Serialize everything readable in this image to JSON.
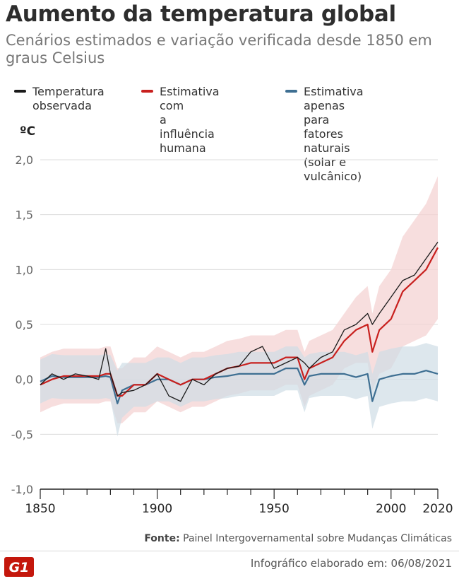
{
  "header": {
    "title": "Aumento da temperatura global",
    "subtitle": "Cenários estimados e variação verificada desde 1850 em graus Celsius"
  },
  "legend": [
    {
      "label": "Temperatura\nobservada",
      "color": "#1a1a1a"
    },
    {
      "label": "Estimativa com\na influência\nhumana",
      "color": "#c8201e"
    },
    {
      "label": "Estimativa apenas\npara fatores naturais\n(solar e vulcânico)",
      "color": "#3e6f92"
    }
  ],
  "footer": {
    "source_label": "Fonte:",
    "source_text": "Painel Intergovernamental sobre Mudanças Climáticas",
    "credit": "Infográfico elaborado em: 06/08/2021",
    "logo_text": "G1"
  },
  "colors": {
    "observed": "#1a1a1a",
    "human": "#c8201e",
    "human_band": "#f4d3d3",
    "natural": "#3e6f92",
    "natural_band": "#cfdde6",
    "brand": "#c4170c"
  },
  "chart_data": {
    "type": "line",
    "unit_label": "ºC",
    "ylim": [
      -1.0,
      2.0
    ],
    "xlim": [
      1850,
      2020
    ],
    "yticks": [
      2.0,
      1.5,
      1.0,
      0.5,
      0.0,
      -0.5,
      -1.0
    ],
    "ytick_labels": [
      "2,0",
      "1,5",
      "1,0",
      "0,5",
      "0,0",
      "-0,5",
      "-1,0"
    ],
    "xticks": [
      1850,
      1900,
      1950,
      2000,
      2020
    ],
    "xtick_labels": [
      "1850",
      "1900",
      "1950",
      "2000",
      "2020"
    ],
    "grid": "horizontal",
    "x": [
      1850,
      1855,
      1860,
      1865,
      1870,
      1875,
      1878,
      1880,
      1883,
      1885,
      1890,
      1895,
      1900,
      1905,
      1910,
      1915,
      1920,
      1925,
      1930,
      1935,
      1940,
      1945,
      1950,
      1955,
      1960,
      1963,
      1965,
      1970,
      1975,
      1980,
      1985,
      1990,
      1992,
      1995,
      2000,
      2005,
      2010,
      2015,
      2020
    ],
    "series": [
      {
        "name": "Temperatura observada",
        "values": [
          -0.05,
          0.05,
          0.0,
          0.05,
          0.03,
          0.0,
          0.28,
          0.05,
          -0.15,
          -0.12,
          -0.1,
          -0.05,
          0.05,
          -0.15,
          -0.2,
          0.0,
          -0.05,
          0.05,
          0.1,
          0.12,
          0.25,
          0.3,
          0.1,
          0.15,
          0.2,
          0.15,
          0.1,
          0.2,
          0.25,
          0.45,
          0.5,
          0.6,
          0.5,
          0.6,
          0.75,
          0.9,
          0.95,
          1.1,
          1.25
        ]
      },
      {
        "name": "Estimativa com a influência humana",
        "values": [
          -0.05,
          0.0,
          0.03,
          0.03,
          0.03,
          0.03,
          0.05,
          0.05,
          -0.15,
          -0.15,
          -0.05,
          -0.05,
          0.05,
          0.0,
          -0.05,
          0.0,
          0.0,
          0.05,
          0.1,
          0.12,
          0.15,
          0.15,
          0.15,
          0.2,
          0.2,
          0.0,
          0.1,
          0.15,
          0.2,
          0.35,
          0.45,
          0.5,
          0.25,
          0.45,
          0.55,
          0.8,
          0.9,
          1.0,
          1.2
        ],
        "band_width": [
          0.25,
          0.25,
          0.25,
          0.25,
          0.25,
          0.25,
          0.25,
          0.25,
          0.25,
          0.25,
          0.25,
          0.25,
          0.25,
          0.25,
          0.25,
          0.25,
          0.25,
          0.25,
          0.25,
          0.25,
          0.25,
          0.25,
          0.25,
          0.25,
          0.25,
          0.25,
          0.25,
          0.25,
          0.25,
          0.25,
          0.3,
          0.35,
          0.35,
          0.4,
          0.45,
          0.5,
          0.55,
          0.6,
          0.65
        ]
      },
      {
        "name": "Estimativa apenas para fatores naturais (solar e vulcânico)",
        "values": [
          -0.02,
          0.03,
          0.02,
          0.02,
          0.02,
          0.02,
          0.03,
          0.02,
          -0.22,
          -0.1,
          -0.05,
          -0.05,
          0.0,
          0.0,
          -0.05,
          0.0,
          0.0,
          0.02,
          0.03,
          0.05,
          0.05,
          0.05,
          0.05,
          0.1,
          0.1,
          -0.05,
          0.03,
          0.05,
          0.05,
          0.05,
          0.02,
          0.05,
          -0.2,
          0.0,
          0.03,
          0.05,
          0.05,
          0.08,
          0.05
        ],
        "band_width": [
          0.2,
          0.2,
          0.2,
          0.2,
          0.2,
          0.2,
          0.2,
          0.2,
          0.3,
          0.25,
          0.2,
          0.2,
          0.2,
          0.2,
          0.2,
          0.2,
          0.2,
          0.2,
          0.2,
          0.2,
          0.2,
          0.2,
          0.2,
          0.2,
          0.2,
          0.25,
          0.2,
          0.2,
          0.2,
          0.2,
          0.2,
          0.2,
          0.25,
          0.25,
          0.25,
          0.25,
          0.25,
          0.25,
          0.25
        ]
      }
    ]
  }
}
